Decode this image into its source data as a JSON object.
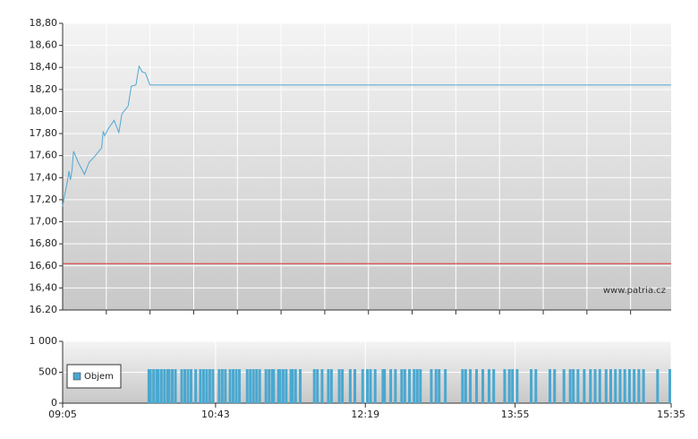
{
  "chart_data": [
    {
      "type": "line",
      "color": "#4fa8d0",
      "x": [
        "09:05",
        "09:06",
        "09:08",
        "09:09",
        "09:10",
        "09:11",
        "09:12",
        "09:15",
        "09:19",
        "09:22",
        "09:26",
        "09:30",
        "09:31",
        "09:32",
        "09:34",
        "09:38",
        "09:41",
        "09:43",
        "09:47",
        "09:49",
        "09:52",
        "09:54",
        "09:56",
        "09:58",
        "10:01",
        "15:35"
      ],
      "values": [
        17.14,
        17.22,
        17.36,
        17.46,
        17.38,
        17.47,
        17.64,
        17.54,
        17.43,
        17.54,
        17.6,
        17.67,
        17.82,
        17.78,
        17.84,
        17.92,
        17.81,
        17.98,
        18.05,
        18.23,
        18.24,
        18.41,
        18.36,
        18.35,
        18.24,
        18.24
      ],
      "xlim": [
        "09:05",
        "15:35"
      ],
      "xticks": [
        "09:33",
        "10:01",
        "10:29",
        "10:57",
        "11:25",
        "11:53",
        "12:21",
        "12:49",
        "13:17",
        "13:45",
        "14:13",
        "14:41",
        "15:09"
      ],
      "ylim": [
        16.2,
        18.8
      ],
      "yticks": [
        {
          "value": 16.2,
          "label": "16.20"
        },
        {
          "value": 16.4,
          "label": "16,40"
        },
        {
          "value": 16.6,
          "label": "16,60"
        },
        {
          "value": 16.8,
          "label": "16,80"
        },
        {
          "value": 17,
          "label": "17,00"
        },
        {
          "value": 17.2,
          "label": "17,20"
        },
        {
          "value": 17.4,
          "label": "17,40"
        },
        {
          "value": 17.6,
          "label": "17,60"
        },
        {
          "value": 17.8,
          "label": "17,80"
        },
        {
          "value": 18,
          "label": "18,00"
        },
        {
          "value": 18.2,
          "label": "18,20"
        },
        {
          "value": 18.4,
          "label": "18,40"
        },
        {
          "value": 18.6,
          "label": "18,60"
        },
        {
          "value": 18.8,
          "label": "18,80"
        }
      ],
      "reference_line": {
        "value": 16.62,
        "color": "#e03030"
      },
      "watermark": "www.patria.cz",
      "grid": true
    },
    {
      "type": "bar",
      "x": [
        "10:00",
        "10:01",
        "10:03",
        "10:05",
        "10:06",
        "10:08",
        "10:10",
        "10:12",
        "10:13",
        "10:15",
        "10:17",
        "10:21",
        "10:23",
        "10:25",
        "10:27",
        "10:30",
        "10:33",
        "10:35",
        "10:37",
        "10:39",
        "10:41",
        "10:45",
        "10:47",
        "10:49",
        "10:52",
        "10:54",
        "10:56",
        "10:58",
        "11:03",
        "11:05",
        "11:07",
        "11:09",
        "11:11",
        "11:15",
        "11:17",
        "11:19",
        "11:20",
        "11:23",
        "11:24",
        "11:26",
        "11:28",
        "11:31",
        "11:32",
        "11:34",
        "11:37",
        "11:46",
        "11:48",
        "11:51",
        "11:55",
        "11:57",
        "12:02",
        "12:04",
        "12:09",
        "12:12",
        "12:17",
        "12:20",
        "12:22",
        "12:25",
        "12:30",
        "12:31",
        "12:35",
        "12:38",
        "12:42",
        "12:44",
        "12:47",
        "12:50",
        "12:52",
        "12:54",
        "13:01",
        "13:04",
        "13:06",
        "13:10",
        "13:21",
        "13:23",
        "13:26",
        "13:30",
        "13:34",
        "13:38",
        "13:41",
        "13:48",
        "13:51",
        "13:53",
        "13:56",
        "14:05",
        "14:08",
        "14:17",
        "14:20",
        "14:26",
        "14:30",
        "14:32",
        "14:35",
        "14:39",
        "14:43",
        "14:46",
        "14:49",
        "14:53",
        "14:56",
        "14:59",
        "15:02",
        "15:05",
        "15:08",
        "15:11",
        "15:14",
        "15:17",
        "15:26",
        "15:35"
      ],
      "series": [
        {
          "name": "Objem",
          "color": "#4aa8d0",
          "values": [
            550,
            550,
            550,
            550,
            550,
            550,
            550,
            550,
            550,
            550,
            550,
            550,
            550,
            550,
            550,
            550,
            550,
            550,
            550,
            550,
            550,
            550,
            550,
            550,
            550,
            550,
            550,
            550,
            550,
            550,
            550,
            550,
            550,
            550,
            550,
            550,
            550,
            550,
            550,
            550,
            550,
            550,
            550,
            550,
            550,
            550,
            550,
            550,
            550,
            550,
            550,
            550,
            550,
            550,
            550,
            550,
            550,
            550,
            550,
            550,
            550,
            550,
            550,
            550,
            550,
            550,
            550,
            550,
            550,
            550,
            550,
            550,
            550,
            550,
            550,
            550,
            550,
            550,
            550,
            550,
            550,
            550,
            550,
            550,
            550,
            550,
            550,
            550,
            550,
            550,
            550,
            550,
            550,
            550,
            550,
            550,
            550,
            550,
            550,
            550,
            550,
            550,
            550,
            550,
            550,
            550
          ]
        }
      ],
      "xlim": [
        "09:05",
        "15:35"
      ],
      "xticks": [
        "09:05",
        "10:43",
        "12:19",
        "13:55",
        "15:35"
      ],
      "ylim": [
        0,
        1000
      ],
      "yticks": [
        0,
        500,
        {
          "value": 1000,
          "label": "1 000"
        }
      ],
      "legend": "left",
      "grid": true
    }
  ]
}
